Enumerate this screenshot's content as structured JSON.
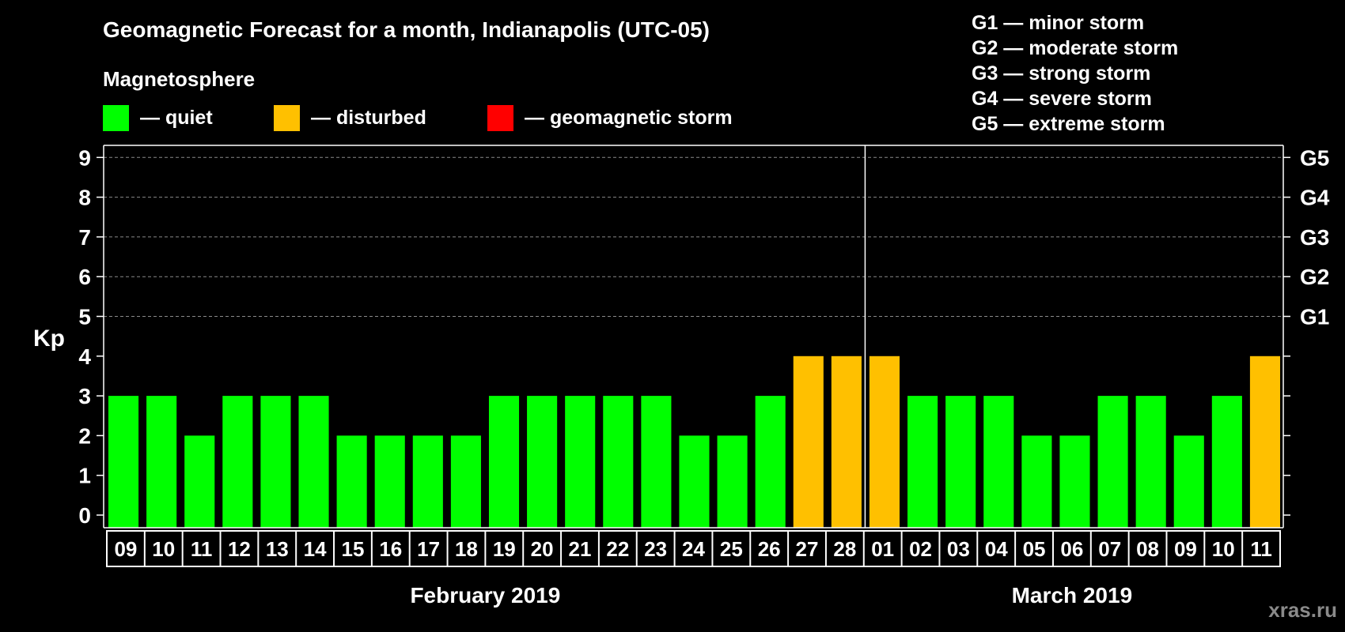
{
  "chart_data": {
    "type": "bar",
    "title": "Geomagnetic Forecast for a month, Indianapolis (UTC-05)",
    "legend": {
      "heading": "Magnetosphere",
      "items": [
        {
          "label": "— quiet",
          "color": "#00ff00"
        },
        {
          "label": "— disturbed",
          "color": "#ffc000"
        },
        {
          "label": "— geomagnetic storm",
          "color": "#ff0000"
        }
      ]
    },
    "storm_scale": [
      "G1 — minor storm",
      "G2 — moderate storm",
      "G3 — strong storm",
      "G4 — severe storm",
      "G5 — extreme storm"
    ],
    "ylabel": "Kp",
    "ylim": [
      0,
      9
    ],
    "yticks": [
      "0",
      "1",
      "2",
      "3",
      "4",
      "5",
      "6",
      "7",
      "8",
      "9"
    ],
    "right_axis": [
      {
        "kp": 5,
        "label": "G1"
      },
      {
        "kp": 6,
        "label": "G2"
      },
      {
        "kp": 7,
        "label": "G3"
      },
      {
        "kp": 8,
        "label": "G4"
      },
      {
        "kp": 9,
        "label": "G5"
      }
    ],
    "categories": [
      "09",
      "10",
      "11",
      "12",
      "13",
      "14",
      "15",
      "16",
      "17",
      "18",
      "19",
      "20",
      "21",
      "22",
      "23",
      "24",
      "25",
      "26",
      "27",
      "28",
      "01",
      "02",
      "03",
      "04",
      "05",
      "06",
      "07",
      "08",
      "09",
      "10",
      "11"
    ],
    "values": [
      3,
      3,
      2,
      3,
      3,
      3,
      2,
      2,
      2,
      2,
      3,
      3,
      3,
      3,
      3,
      2,
      2,
      3,
      4,
      4,
      4,
      3,
      3,
      3,
      2,
      2,
      3,
      3,
      2,
      3,
      4
    ],
    "months": [
      {
        "label": "February 2019",
        "start": 0,
        "end": 19
      },
      {
        "label": "March 2019",
        "start": 20,
        "end": 30
      }
    ],
    "thresholds": {
      "disturbed": 4,
      "storm": 5
    }
  },
  "watermark": "xras.ru"
}
